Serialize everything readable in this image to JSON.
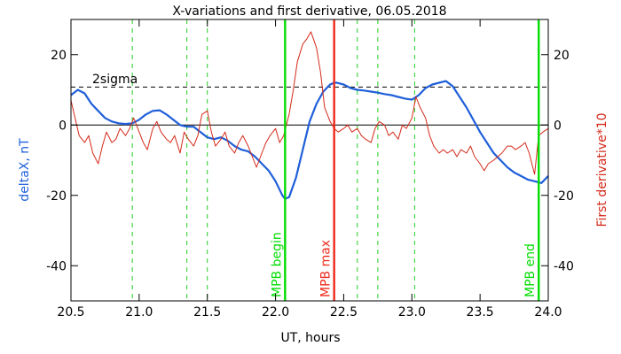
{
  "chart_data": {
    "type": "line",
    "title": "X-variations and first derivative, 06.05.2018",
    "xlabel": "UT, hours",
    "ylabel_left": "deltaX, nT",
    "ylabel_right": "First derivative*10",
    "xlim": [
      20.5,
      24.0
    ],
    "ylim": [
      -50,
      30
    ],
    "x_ticks": [
      20.5,
      21.0,
      21.5,
      22.0,
      22.5,
      23.0,
      23.5,
      24.0
    ],
    "x_tick_labels": [
      "20.5",
      "21.0",
      "21.5",
      "22.0",
      "22.5",
      "23.0",
      "23.5",
      "24.0"
    ],
    "y_ticks": [
      20,
      0,
      -20,
      -40
    ],
    "y_tick_labels": [
      "20",
      "0",
      "-20",
      "-40"
    ],
    "sigma_line": {
      "y": 10.8,
      "label": "2sigma"
    },
    "green_dashed_lines_x": [
      20.95,
      21.35,
      21.5,
      22.6,
      22.75,
      23.02
    ],
    "markers": [
      {
        "x": 22.07,
        "label": "MPB begin",
        "color": "#00dd00"
      },
      {
        "x": 22.43,
        "label": "MPB max",
        "color": "#ee2a1b"
      },
      {
        "x": 23.93,
        "label": "MPB end",
        "color": "#00dd00"
      }
    ],
    "series": [
      {
        "color": "#1f5fd9",
        "x": [
          20.5,
          20.55,
          20.6,
          20.65,
          20.7,
          20.75,
          20.8,
          20.85,
          20.9,
          20.95,
          21.0,
          21.05,
          21.1,
          21.15,
          21.2,
          21.25,
          21.3,
          21.35,
          21.4,
          21.45,
          21.5,
          21.55,
          21.6,
          21.65,
          21.7,
          21.75,
          21.8,
          21.85,
          21.9,
          21.95,
          22.0,
          22.05,
          22.07,
          22.1,
          22.15,
          22.2,
          22.25,
          22.3,
          22.35,
          22.4,
          22.43,
          22.45,
          22.5,
          22.55,
          22.6,
          22.65,
          22.7,
          22.75,
          22.8,
          22.85,
          22.9,
          22.95,
          23.0,
          23.05,
          23.1,
          23.15,
          23.2,
          23.25,
          23.3,
          23.35,
          23.4,
          23.45,
          23.5,
          23.55,
          23.6,
          23.65,
          23.7,
          23.75,
          23.8,
          23.85,
          23.9,
          23.95,
          24.0
        ],
        "values": [
          8.5,
          10,
          9,
          6,
          4,
          2,
          1,
          0.5,
          0.3,
          0.5,
          1.5,
          3,
          4,
          4.2,
          3,
          1.5,
          0,
          -0.5,
          -0.5,
          -2,
          -3.5,
          -4,
          -3.5,
          -4.5,
          -6,
          -7,
          -7.5,
          -9,
          -11,
          -13,
          -16,
          -20,
          -21,
          -20.5,
          -15,
          -7,
          1,
          6,
          9.5,
          11.5,
          12,
          12,
          11.5,
          10.5,
          10,
          9.8,
          9.5,
          9.2,
          8.8,
          8.5,
          8,
          7.5,
          7.2,
          8.5,
          10.5,
          11.5,
          12,
          12.5,
          11,
          8,
          5,
          1.5,
          -2,
          -5,
          -8,
          -10,
          -12,
          -13.5,
          -14.5,
          -15.5,
          -16,
          -16.5,
          -14.5
        ]
      },
      {
        "color": "#d42a1a",
        "x": [
          20.5,
          20.53,
          20.56,
          20.6,
          20.63,
          20.66,
          20.7,
          20.73,
          20.76,
          20.8,
          20.83,
          20.86,
          20.9,
          20.93,
          20.96,
          21.0,
          21.03,
          21.06,
          21.1,
          21.13,
          21.16,
          21.2,
          21.23,
          21.26,
          21.3,
          21.33,
          21.36,
          21.4,
          21.43,
          21.46,
          21.5,
          21.53,
          21.56,
          21.6,
          21.63,
          21.66,
          21.7,
          21.73,
          21.76,
          21.8,
          21.83,
          21.86,
          21.9,
          21.93,
          21.96,
          22.0,
          22.03,
          22.06,
          22.1,
          22.13,
          22.16,
          22.2,
          22.23,
          22.26,
          22.3,
          22.33,
          22.36,
          22.4,
          22.43,
          22.46,
          22.5,
          22.53,
          22.56,
          22.6,
          22.63,
          22.66,
          22.7,
          22.73,
          22.76,
          22.8,
          22.83,
          22.86,
          22.9,
          22.93,
          22.96,
          23.0,
          23.03,
          23.06,
          23.1,
          23.13,
          23.16,
          23.2,
          23.23,
          23.26,
          23.3,
          23.33,
          23.36,
          23.4,
          23.43,
          23.46,
          23.5,
          23.53,
          23.56,
          23.6,
          23.63,
          23.66,
          23.7,
          23.73,
          23.76,
          23.8,
          23.83,
          23.86,
          23.9,
          23.93,
          23.96,
          24.0
        ],
        "values": [
          7,
          2,
          -3,
          -5,
          -3,
          -8,
          -11,
          -6,
          -2,
          -5,
          -4,
          -1,
          -3,
          -1,
          2,
          -2,
          -5,
          -7,
          -1,
          1,
          -2,
          -4,
          -5,
          -3,
          -8,
          -2,
          -4,
          -6,
          -3,
          3,
          4,
          -2,
          -6,
          -4,
          -2,
          -6,
          -8,
          -5,
          -3,
          -6,
          -9,
          -12,
          -8,
          -5,
          -3,
          -1,
          -5,
          -3,
          3,
          10,
          18,
          23,
          24.5,
          26.5,
          22,
          15,
          5,
          1,
          -1,
          -2,
          -1,
          0,
          -2,
          -1,
          -3,
          -4,
          -5,
          -1,
          1,
          0,
          -3,
          -2,
          -4,
          0,
          -1,
          2,
          8,
          5,
          2,
          -3,
          -6,
          -8,
          -7,
          -8,
          -7,
          -9,
          -7,
          -8,
          -6,
          -9,
          -11,
          -13,
          -11,
          -10,
          -9,
          -8,
          -6,
          -6,
          -7,
          -6,
          -5,
          -8,
          -14,
          -3,
          -2,
          -1
        ],
        "scale": "right axis, derivative x10"
      }
    ]
  }
}
